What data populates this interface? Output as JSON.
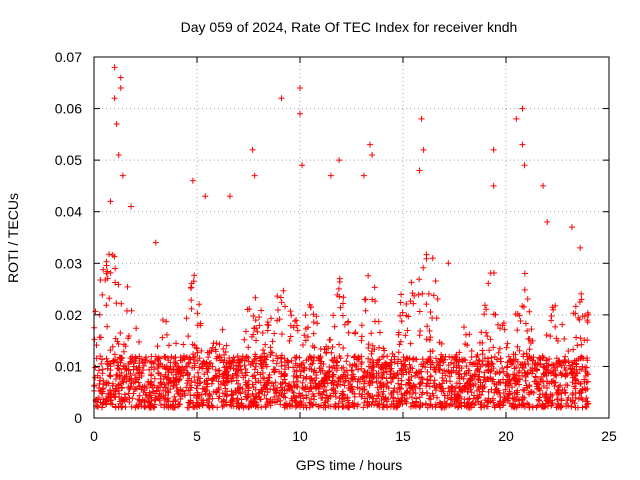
{
  "chart_data": {
    "type": "scatter",
    "title": "Day 059 of 2024, Rate Of TEC Index for receiver kndh",
    "xlabel": "GPS time / hours",
    "ylabel": "ROTI / TECUs",
    "xlim": [
      0,
      25
    ],
    "ylim": [
      0,
      0.07
    ],
    "xticks": [
      0,
      5,
      10,
      15,
      20,
      25
    ],
    "xtick_labels": [
      "0",
      "5",
      "10",
      "15",
      "20",
      "25"
    ],
    "yticks": [
      0,
      0.01,
      0.02,
      0.03,
      0.04,
      0.05,
      0.06,
      0.07
    ],
    "ytick_labels": [
      "0",
      "0.01",
      "0.02",
      "0.03",
      "0.04",
      "0.05",
      "0.06",
      "0.07"
    ],
    "grid": true,
    "marker": "plus",
    "color": "#ff0000",
    "x_data_range": [
      0,
      24
    ],
    "series": [
      {
        "name": "ROTI",
        "representative_points": [
          {
            "x": 0.3,
            "y": 0.012
          },
          {
            "x": 0.6,
            "y": 0.028
          },
          {
            "x": 0.8,
            "y": 0.042
          },
          {
            "x": 1.0,
            "y": 0.068
          },
          {
            "x": 1.0,
            "y": 0.062
          },
          {
            "x": 1.1,
            "y": 0.057
          },
          {
            "x": 1.2,
            "y": 0.051
          },
          {
            "x": 1.3,
            "y": 0.066
          },
          {
            "x": 1.3,
            "y": 0.064
          },
          {
            "x": 1.4,
            "y": 0.047
          },
          {
            "x": 1.8,
            "y": 0.041
          },
          {
            "x": 3.0,
            "y": 0.034
          },
          {
            "x": 4.8,
            "y": 0.046
          },
          {
            "x": 5.4,
            "y": 0.043
          },
          {
            "x": 6.6,
            "y": 0.043
          },
          {
            "x": 7.7,
            "y": 0.052
          },
          {
            "x": 7.8,
            "y": 0.047
          },
          {
            "x": 9.1,
            "y": 0.062
          },
          {
            "x": 10.0,
            "y": 0.064
          },
          {
            "x": 10.0,
            "y": 0.059
          },
          {
            "x": 10.1,
            "y": 0.049
          },
          {
            "x": 11.5,
            "y": 0.047
          },
          {
            "x": 11.9,
            "y": 0.05
          },
          {
            "x": 13.1,
            "y": 0.047
          },
          {
            "x": 13.4,
            "y": 0.053
          },
          {
            "x": 13.5,
            "y": 0.051
          },
          {
            "x": 15.8,
            "y": 0.048
          },
          {
            "x": 15.9,
            "y": 0.058
          },
          {
            "x": 16.0,
            "y": 0.052
          },
          {
            "x": 17.2,
            "y": 0.03
          },
          {
            "x": 19.4,
            "y": 0.052
          },
          {
            "x": 19.4,
            "y": 0.045
          },
          {
            "x": 20.5,
            "y": 0.058
          },
          {
            "x": 20.8,
            "y": 0.06
          },
          {
            "x": 20.8,
            "y": 0.053
          },
          {
            "x": 20.9,
            "y": 0.049
          },
          {
            "x": 21.8,
            "y": 0.045
          },
          {
            "x": 22.0,
            "y": 0.038
          },
          {
            "x": 23.2,
            "y": 0.037
          },
          {
            "x": 23.6,
            "y": 0.033
          },
          {
            "x": 24.0,
            "y": 0.02
          }
        ],
        "baseline_range": [
          0.002,
          0.012
        ],
        "peak_hours": [
          1.0,
          10.0,
          13.5,
          16.0,
          20.8
        ]
      }
    ]
  }
}
